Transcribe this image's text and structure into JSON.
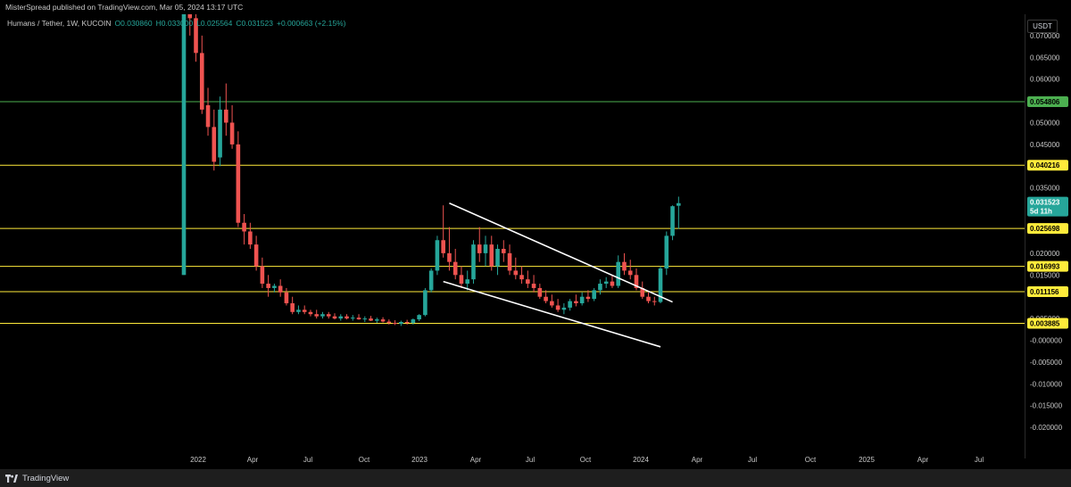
{
  "header": {
    "published_text": "MisterSpread published on TradingView.com, Mar 05, 2024 13:17 UTC"
  },
  "symbol": {
    "name": "Humans / Tether, 1W, KUCOIN",
    "open": "O0.030860",
    "high": "H0.033000",
    "low": "L0.025564",
    "close": "C0.031523",
    "change": "+0.000663 (+2.15%)"
  },
  "price_scale": {
    "currency": "USDT",
    "ticks": [
      "0.070000",
      "0.065000",
      "0.060000",
      "0.050000",
      "0.045000",
      "0.035000",
      "0.020000",
      "0.015000",
      "0.005000",
      "-0.000000",
      "-0.005000",
      "-0.010000",
      "-0.015000",
      "-0.020000"
    ]
  },
  "time_scale": {
    "labels": [
      "2022",
      "Apr",
      "Jul",
      "Oct",
      "2023",
      "Apr",
      "Jul",
      "Oct",
      "2024",
      "Apr",
      "Jul",
      "Oct",
      "2025",
      "Apr",
      "Jul"
    ]
  },
  "levels": [
    {
      "value": "0.054806",
      "color": "#4caf50",
      "text_color": "#000000"
    },
    {
      "value": "0.040216",
      "color": "#ffeb3b",
      "text_color": "#000000"
    },
    {
      "value": "0.025698",
      "color": "#ffeb3b",
      "text_color": "#000000"
    },
    {
      "value": "0.016993",
      "color": "#ffeb3b",
      "text_color": "#000000"
    },
    {
      "value": "0.011156",
      "color": "#ffeb3b",
      "text_color": "#000000"
    },
    {
      "value": "0.003885",
      "color": "#ffeb3b",
      "text_color": "#000000"
    }
  ],
  "last_price": {
    "value": "0.031523",
    "countdown": "5d 11h",
    "color": "#26a69a"
  },
  "colors": {
    "up": "#26a69a",
    "down": "#ef5350"
  },
  "footer": {
    "brand": "TradingView"
  },
  "chart_data": {
    "type": "candlestick",
    "symbol": "Humans / Tether",
    "interval": "1W",
    "exchange": "KUCOIN",
    "horizontal_levels": [
      0.054806,
      0.040216,
      0.025698,
      0.016993,
      0.011156,
      0.003885
    ],
    "ylim": [
      -0.02,
      0.075
    ],
    "candles": [
      {
        "o": 0.015,
        "h": 0.076,
        "l": 0.015,
        "c": 0.075
      },
      {
        "o": 0.079,
        "h": 0.08,
        "l": 0.07,
        "c": 0.074
      },
      {
        "o": 0.074,
        "h": 0.076,
        "l": 0.064,
        "c": 0.066
      },
      {
        "o": 0.066,
        "h": 0.07,
        "l": 0.052,
        "c": 0.053
      },
      {
        "o": 0.054,
        "h": 0.058,
        "l": 0.047,
        "c": 0.049
      },
      {
        "o": 0.049,
        "h": 0.053,
        "l": 0.039,
        "c": 0.041
      },
      {
        "o": 0.042,
        "h": 0.056,
        "l": 0.04,
        "c": 0.053
      },
      {
        "o": 0.053,
        "h": 0.059,
        "l": 0.047,
        "c": 0.05
      },
      {
        "o": 0.05,
        "h": 0.054,
        "l": 0.044,
        "c": 0.045
      },
      {
        "o": 0.045,
        "h": 0.048,
        "l": 0.026,
        "c": 0.027
      },
      {
        "o": 0.027,
        "h": 0.029,
        "l": 0.022,
        "c": 0.025
      },
      {
        "o": 0.025,
        "h": 0.027,
        "l": 0.021,
        "c": 0.022
      },
      {
        "o": 0.022,
        "h": 0.024,
        "l": 0.016,
        "c": 0.017
      },
      {
        "o": 0.017,
        "h": 0.019,
        "l": 0.012,
        "c": 0.013
      },
      {
        "o": 0.013,
        "h": 0.015,
        "l": 0.01,
        "c": 0.012
      },
      {
        "o": 0.012,
        "h": 0.013,
        "l": 0.011,
        "c": 0.0125
      },
      {
        "o": 0.0125,
        "h": 0.014,
        "l": 0.01,
        "c": 0.011
      },
      {
        "o": 0.011,
        "h": 0.012,
        "l": 0.008,
        "c": 0.0085
      },
      {
        "o": 0.0085,
        "h": 0.01,
        "l": 0.006,
        "c": 0.0065
      },
      {
        "o": 0.0065,
        "h": 0.008,
        "l": 0.006,
        "c": 0.007
      },
      {
        "o": 0.007,
        "h": 0.008,
        "l": 0.006,
        "c": 0.0065
      },
      {
        "o": 0.0065,
        "h": 0.007,
        "l": 0.0055,
        "c": 0.006
      },
      {
        "o": 0.006,
        "h": 0.007,
        "l": 0.005,
        "c": 0.0055
      },
      {
        "o": 0.0055,
        "h": 0.0065,
        "l": 0.005,
        "c": 0.006
      },
      {
        "o": 0.006,
        "h": 0.0065,
        "l": 0.005,
        "c": 0.0055
      },
      {
        "o": 0.0055,
        "h": 0.0062,
        "l": 0.0048,
        "c": 0.005
      },
      {
        "o": 0.005,
        "h": 0.006,
        "l": 0.0045,
        "c": 0.0055
      },
      {
        "o": 0.0055,
        "h": 0.006,
        "l": 0.0048,
        "c": 0.005
      },
      {
        "o": 0.005,
        "h": 0.0058,
        "l": 0.0045,
        "c": 0.0052
      },
      {
        "o": 0.0052,
        "h": 0.006,
        "l": 0.0047,
        "c": 0.0048
      },
      {
        "o": 0.0048,
        "h": 0.0055,
        "l": 0.0042,
        "c": 0.005
      },
      {
        "o": 0.005,
        "h": 0.0056,
        "l": 0.0044,
        "c": 0.0045
      },
      {
        "o": 0.0045,
        "h": 0.0052,
        "l": 0.004,
        "c": 0.0048
      },
      {
        "o": 0.0048,
        "h": 0.0053,
        "l": 0.0041,
        "c": 0.0043
      },
      {
        "o": 0.0043,
        "h": 0.0048,
        "l": 0.0036,
        "c": 0.004
      },
      {
        "o": 0.004,
        "h": 0.0046,
        "l": 0.0035,
        "c": 0.0038
      },
      {
        "o": 0.0038,
        "h": 0.0045,
        "l": 0.0033,
        "c": 0.0042
      },
      {
        "o": 0.0042,
        "h": 0.0047,
        "l": 0.0036,
        "c": 0.004
      },
      {
        "o": 0.004,
        "h": 0.005,
        "l": 0.0036,
        "c": 0.0048
      },
      {
        "o": 0.0048,
        "h": 0.006,
        "l": 0.0044,
        "c": 0.0058
      },
      {
        "o": 0.0058,
        "h": 0.012,
        "l": 0.0055,
        "c": 0.0115
      },
      {
        "o": 0.0115,
        "h": 0.0165,
        "l": 0.011,
        "c": 0.016
      },
      {
        "o": 0.016,
        "h": 0.024,
        "l": 0.015,
        "c": 0.023
      },
      {
        "o": 0.023,
        "h": 0.031,
        "l": 0.019,
        "c": 0.02
      },
      {
        "o": 0.02,
        "h": 0.026,
        "l": 0.016,
        "c": 0.018
      },
      {
        "o": 0.018,
        "h": 0.021,
        "l": 0.014,
        "c": 0.015
      },
      {
        "o": 0.015,
        "h": 0.017,
        "l": 0.012,
        "c": 0.013
      },
      {
        "o": 0.013,
        "h": 0.016,
        "l": 0.0115,
        "c": 0.014
      },
      {
        "o": 0.014,
        "h": 0.023,
        "l": 0.013,
        "c": 0.022
      },
      {
        "o": 0.022,
        "h": 0.026,
        "l": 0.018,
        "c": 0.02
      },
      {
        "o": 0.02,
        "h": 0.024,
        "l": 0.017,
        "c": 0.022
      },
      {
        "o": 0.022,
        "h": 0.024,
        "l": 0.016,
        "c": 0.017
      },
      {
        "o": 0.017,
        "h": 0.022,
        "l": 0.015,
        "c": 0.021
      },
      {
        "o": 0.021,
        "h": 0.023,
        "l": 0.018,
        "c": 0.02
      },
      {
        "o": 0.02,
        "h": 0.022,
        "l": 0.015,
        "c": 0.016
      },
      {
        "o": 0.016,
        "h": 0.019,
        "l": 0.014,
        "c": 0.015
      },
      {
        "o": 0.015,
        "h": 0.017,
        "l": 0.013,
        "c": 0.014
      },
      {
        "o": 0.014,
        "h": 0.016,
        "l": 0.012,
        "c": 0.013
      },
      {
        "o": 0.013,
        "h": 0.015,
        "l": 0.011,
        "c": 0.012
      },
      {
        "o": 0.012,
        "h": 0.013,
        "l": 0.0095,
        "c": 0.01
      },
      {
        "o": 0.01,
        "h": 0.0115,
        "l": 0.0085,
        "c": 0.009
      },
      {
        "o": 0.009,
        "h": 0.0105,
        "l": 0.0075,
        "c": 0.008
      },
      {
        "o": 0.008,
        "h": 0.0095,
        "l": 0.0065,
        "c": 0.007
      },
      {
        "o": 0.007,
        "h": 0.0085,
        "l": 0.006,
        "c": 0.0075
      },
      {
        "o": 0.0075,
        "h": 0.0095,
        "l": 0.0068,
        "c": 0.009
      },
      {
        "o": 0.009,
        "h": 0.0105,
        "l": 0.0078,
        "c": 0.0085
      },
      {
        "o": 0.0085,
        "h": 0.011,
        "l": 0.008,
        "c": 0.01
      },
      {
        "o": 0.01,
        "h": 0.0115,
        "l": 0.0088,
        "c": 0.0095
      },
      {
        "o": 0.0095,
        "h": 0.012,
        "l": 0.009,
        "c": 0.0115
      },
      {
        "o": 0.0115,
        "h": 0.014,
        "l": 0.0105,
        "c": 0.013
      },
      {
        "o": 0.013,
        "h": 0.0145,
        "l": 0.012,
        "c": 0.0135
      },
      {
        "o": 0.0135,
        "h": 0.015,
        "l": 0.012,
        "c": 0.0125
      },
      {
        "o": 0.0125,
        "h": 0.0195,
        "l": 0.012,
        "c": 0.018
      },
      {
        "o": 0.018,
        "h": 0.02,
        "l": 0.015,
        "c": 0.016
      },
      {
        "o": 0.016,
        "h": 0.0185,
        "l": 0.014,
        "c": 0.015
      },
      {
        "o": 0.015,
        "h": 0.0165,
        "l": 0.0115,
        "c": 0.012
      },
      {
        "o": 0.012,
        "h": 0.0135,
        "l": 0.0095,
        "c": 0.01
      },
      {
        "o": 0.01,
        "h": 0.011,
        "l": 0.0085,
        "c": 0.009
      },
      {
        "o": 0.009,
        "h": 0.01,
        "l": 0.008,
        "c": 0.0088
      },
      {
        "o": 0.0088,
        "h": 0.017,
        "l": 0.0085,
        "c": 0.0165
      },
      {
        "o": 0.0165,
        "h": 0.025,
        "l": 0.015,
        "c": 0.024
      },
      {
        "o": 0.024,
        "h": 0.031,
        "l": 0.023,
        "c": 0.0308
      },
      {
        "o": 0.0309,
        "h": 0.033,
        "l": 0.0256,
        "c": 0.0315
      }
    ],
    "trendlines": [
      {
        "from": {
          "candle": 44,
          "price": 0.0315
        },
        "to": {
          "candle": 81,
          "price": 0.0088
        }
      },
      {
        "from": {
          "candle": 43,
          "price": 0.0135
        },
        "to": {
          "candle": 79,
          "price": -0.0015
        }
      }
    ]
  }
}
